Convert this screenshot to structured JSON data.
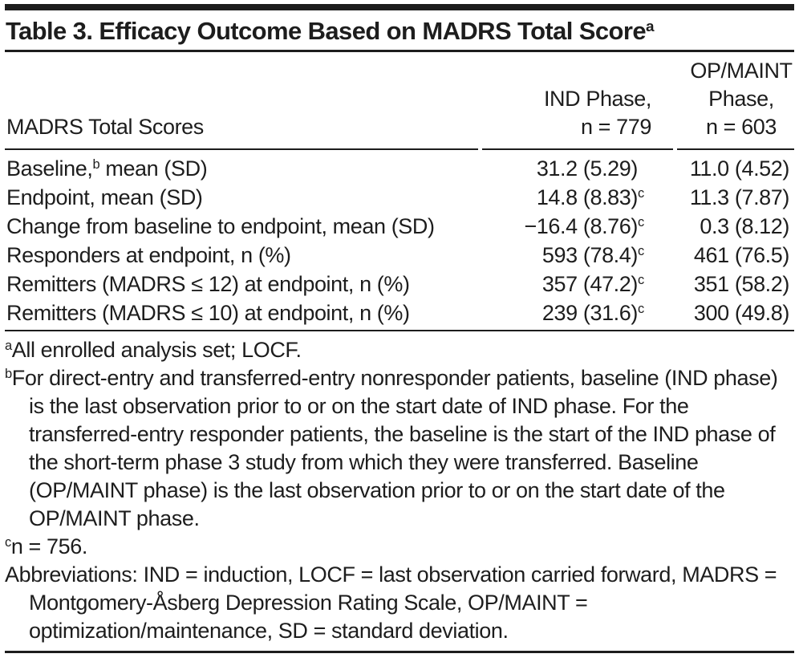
{
  "title": {
    "text": "Table 3. Efficacy Outcome Based on MADRS Total Score",
    "sup": "a"
  },
  "header": {
    "stub_label": "MADRS Total Scores",
    "ind": {
      "line1": "IND Phase,",
      "line2": "n = 779"
    },
    "op": {
      "line1": "OP/MAINT",
      "line2": "Phase,",
      "line3": "n = 603"
    }
  },
  "rows": [
    {
      "label_pre": "Baseline,",
      "label_sup": "b",
      "label_post": " mean (SD)",
      "ind": "31.2 (5.29)",
      "ind_sup": "",
      "op": "11.0 (4.52)"
    },
    {
      "label_pre": "Endpoint, mean (SD)",
      "label_sup": "",
      "label_post": "",
      "ind": "14.8 (8.83)",
      "ind_sup": "c",
      "op": "11.3 (7.87)"
    },
    {
      "label_pre": "Change from baseline to endpoint, mean (SD)",
      "label_sup": "",
      "label_post": "",
      "ind": "−16.4 (8.76)",
      "ind_sup": "c",
      "op": "0.3 (8.12)"
    },
    {
      "label_pre": "Responders at endpoint, n (%)",
      "label_sup": "",
      "label_post": "",
      "ind": "593 (78.4)",
      "ind_sup": "c",
      "op": "461 (76.5)"
    },
    {
      "label_pre": "Remitters (MADRS ≤ 12) at endpoint, n (%)",
      "label_sup": "",
      "label_post": "",
      "ind": "357 (47.2)",
      "ind_sup": "c",
      "op": "351 (58.2)"
    },
    {
      "label_pre": "Remitters (MADRS ≤ 10) at endpoint, n (%)",
      "label_sup": "",
      "label_post": "",
      "ind": "239 (31.6)",
      "ind_sup": "c",
      "op": "300 (49.8)"
    }
  ],
  "footnotes": [
    {
      "sup": "a",
      "text": "All enrolled analysis set; LOCF."
    },
    {
      "sup": "b",
      "text": "For direct-entry and transferred-entry nonresponder patients, baseline (IND phase) is the last observation prior to or on the start date of IND phase. For the transferred-entry responder patients, the baseline is the start of the IND phase of the short-term phase 3 study from which they were transferred. Baseline (OP/MAINT phase) is the last observation prior to or on the start date of the OP/MAINT phase."
    },
    {
      "sup": "c",
      "text": "n = 756."
    },
    {
      "sup": "",
      "text": "Abbreviations: IND = induction, LOCF = last observation carried forward, MADRS = Montgomery-Åsberg Depression Rating Scale, OP/MAINT = optimization/maintenance, SD = standard deviation."
    }
  ],
  "colors": {
    "ink": "#1d1d1d",
    "background": "#ffffff"
  }
}
